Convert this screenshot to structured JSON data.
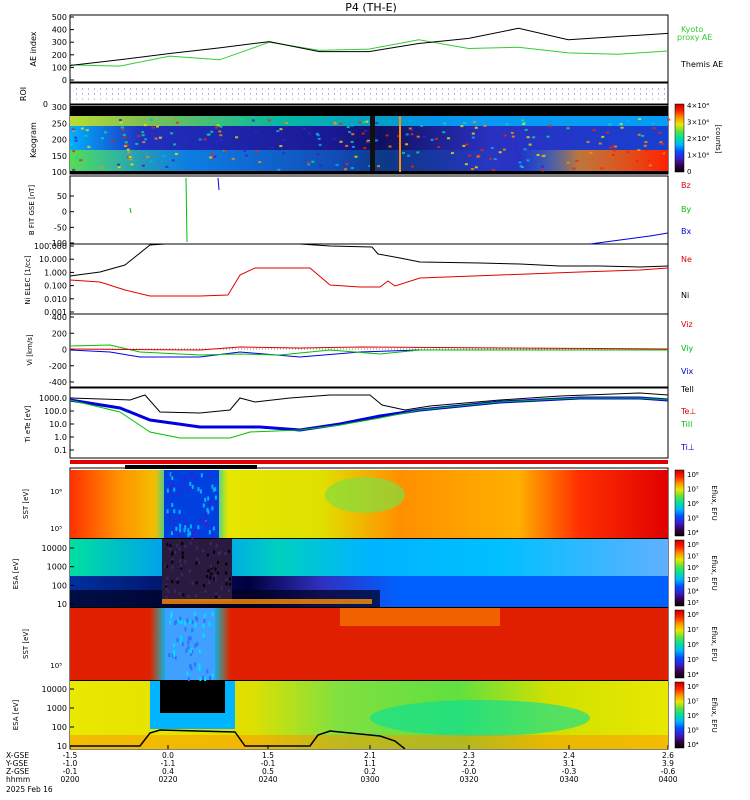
{
  "title": "P4 (TH-E)",
  "date": "2025 Feb 16",
  "colors": {
    "black": "#000000",
    "red": "#e00000",
    "green": "#00c000",
    "blue": "#0000e0",
    "kyoto": "#33cc33",
    "spectrum": [
      "#000000",
      "#3a004f",
      "#3b1fd0",
      "#0050ff",
      "#00b4ff",
      "#00e0a0",
      "#60e040",
      "#e8e800",
      "#ff9000",
      "#ff2000",
      "#c00000"
    ]
  },
  "xaxis": {
    "rows": [
      {
        "label": "X-GSE",
        "ticks": [
          "-1.5",
          "0.0",
          "1.5",
          "2.1",
          "2.3",
          "2.4",
          "2.6"
        ]
      },
      {
        "label": "Y-GSE",
        "ticks": [
          "-1.0",
          "-1.1",
          "-0.1",
          "1.1",
          "2.2",
          "3.1",
          "3.9"
        ]
      },
      {
        "label": "Z-GSE",
        "ticks": [
          "-0.1",
          "0.4",
          "0.5",
          "0.2",
          "-0.0",
          "-0.3",
          "-0.6"
        ]
      },
      {
        "label": "hhmm",
        "ticks": [
          "0200",
          "0220",
          "0240",
          "0300",
          "0320",
          "0340",
          "0400"
        ]
      }
    ]
  },
  "chart_data": [
    {
      "type": "line",
      "panel": "ae",
      "ylabel": "AE index",
      "ylim": [
        0,
        500
      ],
      "yticks": [
        "0",
        "100",
        "200",
        "300",
        "400",
        "500"
      ],
      "legend": [
        "Kyoto",
        "proxy AE",
        "Themis AE"
      ],
      "x": [
        "0200",
        "0210",
        "0220",
        "0230",
        "0240",
        "0250",
        "0300",
        "0310",
        "0320",
        "0330",
        "0340",
        "0350",
        "0400"
      ],
      "series": [
        {
          "name": "Kyoto proxy AE",
          "values": [
            120,
            110,
            190,
            160,
            300,
            235,
            245,
            320,
            250,
            260,
            215,
            205,
            230
          ]
        },
        {
          "name": "Themis AE",
          "values": [
            115,
            160,
            210,
            255,
            305,
            225,
            225,
            290,
            330,
            410,
            320,
            345,
            370
          ]
        }
      ]
    },
    {
      "type": "heatmap",
      "panel": "roi",
      "ylabel": "ROI",
      "yticks": [
        "0"
      ]
    },
    {
      "type": "heatmap",
      "panel": "keogram",
      "ylabel": "Keogram",
      "ylim": [
        100,
        300
      ],
      "yticks": [
        "100",
        "150",
        "200",
        "250",
        "300"
      ],
      "colorbar": {
        "unit": "[counts]",
        "ticks": [
          "0",
          "1×10⁴",
          "2×10⁴",
          "3×10⁴",
          "4×10⁴"
        ]
      }
    },
    {
      "type": "line",
      "panel": "bfield",
      "ylabel": "B FIT GSE [nT]",
      "ylim": [
        -100,
        100
      ],
      "yticks": [
        "-100",
        "-50",
        "0",
        "50"
      ],
      "legend": [
        "Bz",
        "By",
        "Bx"
      ],
      "series": [
        {
          "name": "By",
          "values": [
            [
              0.2,
              80,
              -100
            ]
          ]
        },
        {
          "name": "Bx",
          "values": [
            [
              0.56,
              2.0
            ],
            [
              0.94,
              1.0
            ]
          ]
        }
      ]
    },
    {
      "type": "line",
      "panel": "density",
      "ylabel": "Ni ELEC [1/cc]",
      "scale": "log",
      "yticks": [
        "0.001",
        "0.010",
        "0.100",
        "1.000",
        "10.000",
        "100.000"
      ],
      "legend": [
        "Ne",
        "Ni"
      ]
    },
    {
      "type": "line",
      "panel": "velocity",
      "ylabel": "Vi [km/s]",
      "ylim": [
        -500,
        400
      ],
      "yticks": [
        "-400",
        "-200",
        "0",
        "200",
        "400"
      ],
      "legend": [
        "Viz",
        "Viy",
        "Vix"
      ]
    },
    {
      "type": "line",
      "panel": "temperature",
      "ylabel": "Ti eTe [eV]",
      "scale": "log",
      "yticks": [
        "0.1",
        "1.0",
        "10.0",
        "100.0",
        "1000.0"
      ],
      "legend": [
        "Tell",
        "Te⊥",
        "Till",
        "Ti⊥"
      ]
    },
    {
      "type": "heatmap",
      "panel": "sst_ion",
      "ylabel": "SST [eV]",
      "yticks": [
        "10⁶",
        "10⁵"
      ],
      "colorbar": {
        "unit": "Eflux, EFU",
        "ticks": [
          "10⁸",
          "10⁷",
          "10⁶",
          "10⁵",
          "10⁴"
        ]
      }
    },
    {
      "type": "heatmap",
      "panel": "esa_ion",
      "ylabel": "ESA [eV]",
      "yticks": [
        "10",
        "100",
        "1000",
        "10000"
      ],
      "colorbar": {
        "unit": "Eflux, EFU",
        "ticks": [
          "10⁸",
          "10⁷",
          "10⁶",
          "10⁵",
          "10⁴",
          "10³"
        ]
      }
    },
    {
      "type": "heatmap",
      "panel": "sst_elec",
      "ylabel": "SST [eV]",
      "yticks": [
        "10⁵"
      ],
      "colorbar": {
        "unit": "Eflux, EFU",
        "ticks": [
          "10⁸",
          "10⁷",
          "10⁶",
          "10⁵",
          "10⁴"
        ]
      }
    },
    {
      "type": "heatmap",
      "panel": "esa_elec",
      "ylabel": "ESA [eV]",
      "yticks": [
        "10",
        "100",
        "1000",
        "10000"
      ],
      "colorbar": {
        "unit": "Eflux, EFU",
        "ticks": [
          "10⁸",
          "10⁷",
          "10⁶",
          "10⁵",
          "10⁴"
        ]
      }
    }
  ]
}
